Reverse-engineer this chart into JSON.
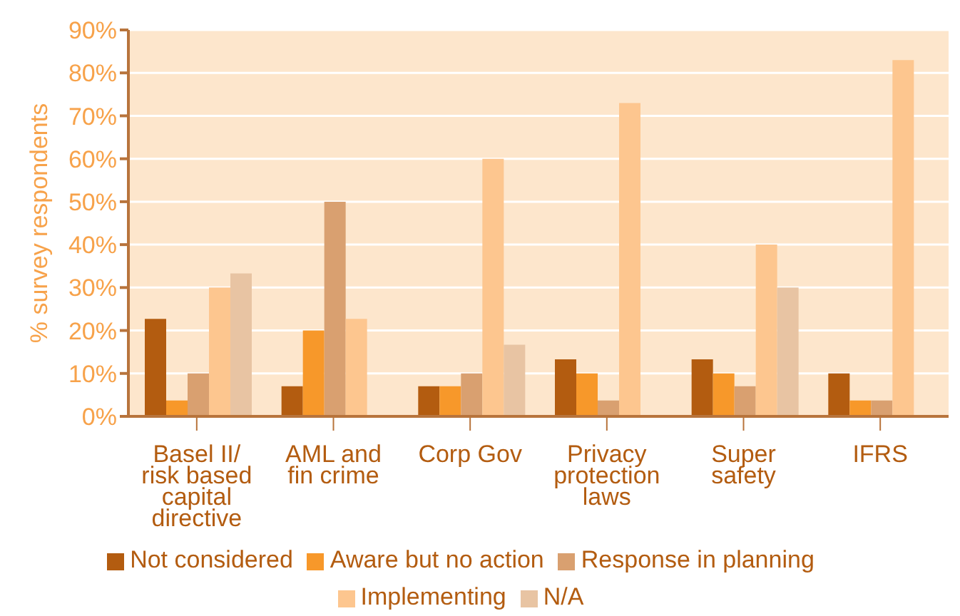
{
  "chart_data": {
    "type": "bar",
    "ylabel": "% survey respondents",
    "categories": [
      "Basel II/\nrisk based\ncapital\ndirective",
      "AML and\nfin crime",
      "Corp Gov",
      "Privacy\nprotection\nlaws",
      "Super\nsafety",
      "IFRS"
    ],
    "series": [
      {
        "name": "Not considered",
        "color": "#b35c10",
        "values": [
          22.7,
          7,
          7,
          13.3,
          13.3,
          10
        ]
      },
      {
        "name": "Aware but no action",
        "color": "#f7982a",
        "values": [
          3.7,
          20,
          7,
          10,
          10,
          3.7
        ]
      },
      {
        "name": "Response in planning",
        "color": "#d9a070",
        "values": [
          10,
          50,
          10,
          3.7,
          7,
          3.7
        ]
      },
      {
        "name": "Implementing",
        "color": "#fdc68f",
        "values": [
          30,
          22.7,
          60,
          73,
          40,
          83
        ]
      },
      {
        "name": "N/A",
        "color": "#e8c4a3",
        "values": [
          33.3,
          0,
          16.7,
          0,
          30,
          0
        ]
      }
    ],
    "ylim": [
      0,
      90
    ],
    "yticks": [
      {
        "value": 0,
        "label": "0%"
      },
      {
        "value": 10,
        "label": "10%"
      },
      {
        "value": 20,
        "label": "20%"
      },
      {
        "value": 30,
        "label": "30%"
      },
      {
        "value": 40,
        "label": "40%"
      },
      {
        "value": 50,
        "label": "50%"
      },
      {
        "value": 60,
        "label": "60%"
      },
      {
        "value": 70,
        "label": "70%"
      },
      {
        "value": 80,
        "label": "80%"
      },
      {
        "value": 90,
        "label": "90%"
      }
    ],
    "grid": "y",
    "legend": "bottom"
  }
}
